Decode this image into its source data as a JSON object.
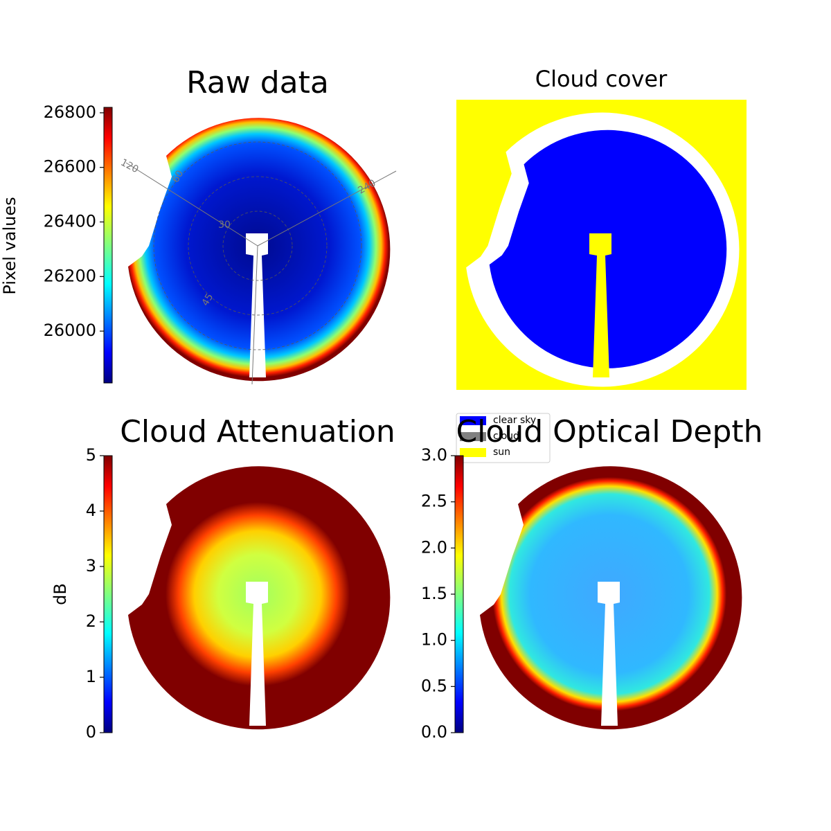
{
  "chart_data": [
    {
      "type": "image",
      "title": "Raw data",
      "colormap": "jet",
      "colorbar": {
        "label": "Pixel values",
        "lim": [
          25810,
          26820
        ],
        "ticks": [
          26000,
          26200,
          26400,
          26600,
          26800
        ]
      },
      "annotations": [
        "120",
        "60",
        "240",
        "30",
        "45"
      ]
    },
    {
      "type": "image",
      "title": "Cloud cover",
      "series": [
        {
          "name": "clear sky",
          "color": "#0000ff"
        },
        {
          "name": "cloud",
          "color": "#808080"
        },
        {
          "name": "sun",
          "color": "#ffff00"
        }
      ]
    },
    {
      "type": "image",
      "title": "Cloud Attenuation",
      "colormap": "jet",
      "colorbar": {
        "label": "dB",
        "lim": [
          0,
          5
        ],
        "ticks": [
          0,
          1,
          2,
          3,
          4,
          5
        ]
      }
    },
    {
      "type": "image",
      "title": "Cloud Optical Depth",
      "colormap": "jet",
      "colorbar": {
        "lim": [
          0,
          3
        ],
        "ticks": [
          {
            "value": 0,
            "label": "0.0"
          },
          {
            "value": 0.5,
            "label": "0.5"
          },
          {
            "value": 1,
            "label": "1.0"
          },
          {
            "value": 1.5,
            "label": "1.5"
          },
          {
            "value": 2,
            "label": "2.0"
          },
          {
            "value": 2.5,
            "label": "2.5"
          },
          {
            "value": 3,
            "label": "3.0"
          }
        ]
      }
    }
  ]
}
